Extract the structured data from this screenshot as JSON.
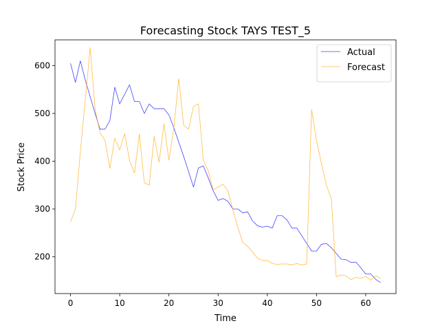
{
  "chart_data": {
    "type": "line",
    "title": "Forecasting Stock TAYS TEST_5",
    "xlabel": "Time",
    "ylabel": "Stock Price",
    "xlim": [
      -3.15,
      66.15
    ],
    "ylim": [
      123,
      654
    ],
    "xticks": [
      0,
      10,
      20,
      30,
      40,
      50,
      60
    ],
    "yticks": [
      200,
      300,
      400,
      500,
      600
    ],
    "grid": false,
    "legend_position": "top-right",
    "x": [
      0,
      1,
      2,
      3,
      4,
      5,
      6,
      7,
      8,
      9,
      10,
      11,
      12,
      13,
      14,
      15,
      16,
      17,
      18,
      19,
      20,
      21,
      22,
      23,
      24,
      25,
      26,
      27,
      28,
      29,
      30,
      31,
      32,
      33,
      34,
      35,
      36,
      37,
      38,
      39,
      40,
      41,
      42,
      43,
      44,
      45,
      46,
      47,
      48,
      49,
      50,
      51,
      52,
      53,
      54,
      55,
      56,
      57,
      58,
      59,
      60,
      61,
      62,
      63
    ],
    "series": [
      {
        "name": "Actual",
        "color": "#0000ff",
        "values": [
          605,
          565,
          610,
          570,
          535,
          500,
          467,
          467,
          485,
          555,
          520,
          540,
          560,
          525,
          525,
          500,
          520,
          510,
          510,
          510,
          497,
          470,
          440,
          410,
          378,
          346,
          386,
          390,
          365,
          338,
          318,
          322,
          316,
          300,
          300,
          292,
          294,
          275,
          265,
          262,
          264,
          260,
          286,
          286,
          277,
          260,
          260,
          244,
          228,
          212,
          212,
          226,
          228,
          219,
          207,
          195,
          194,
          188,
          189,
          177,
          164,
          164,
          153,
          146
        ]
      },
      {
        "name": "Forecast",
        "color": "#ffa500",
        "values": [
          273,
          300,
          420,
          528,
          638,
          508,
          460,
          444,
          385,
          448,
          424,
          458,
          402,
          375,
          457,
          355,
          350,
          452,
          398,
          478,
          402,
          470,
          573,
          475,
          467,
          515,
          520,
          402,
          380,
          340,
          346,
          352,
          338,
          298,
          262,
          230,
          222,
          210,
          197,
          192,
          192,
          186,
          184,
          185,
          185,
          183,
          186,
          183,
          185,
          508,
          443,
          395,
          350,
          322,
          158,
          162,
          160,
          152,
          157,
          155,
          159,
          151,
          160,
          155
        ]
      }
    ]
  }
}
